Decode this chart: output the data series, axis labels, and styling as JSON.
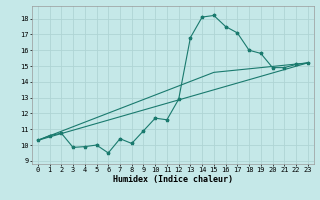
{
  "xlabel": "Humidex (Indice chaleur)",
  "bg_color": "#c5e8e8",
  "grid_color": "#afd4d4",
  "line_color": "#1a7a6e",
  "xlim": [
    -0.5,
    23.5
  ],
  "ylim": [
    8.8,
    18.8
  ],
  "xticks": [
    0,
    1,
    2,
    3,
    4,
    5,
    6,
    7,
    8,
    9,
    10,
    11,
    12,
    13,
    14,
    15,
    16,
    17,
    18,
    19,
    20,
    21,
    22,
    23
  ],
  "yticks": [
    9,
    10,
    11,
    12,
    13,
    14,
    15,
    16,
    17,
    18
  ],
  "zigzag_x": [
    0,
    1,
    2,
    3,
    4,
    5,
    6,
    7,
    8,
    9,
    10,
    11,
    12,
    13,
    14,
    15,
    16,
    17,
    18,
    19,
    20,
    21,
    22,
    23
  ],
  "zigzag_y": [
    10.3,
    10.6,
    10.75,
    9.85,
    9.9,
    10.0,
    9.5,
    10.4,
    10.1,
    10.9,
    11.7,
    11.6,
    12.9,
    16.8,
    18.1,
    18.2,
    17.5,
    17.1,
    16.0,
    15.8,
    14.9,
    14.9,
    15.1,
    15.2
  ],
  "line2_x": [
    0,
    23
  ],
  "line2_y": [
    10.3,
    15.2
  ],
  "line3_x": [
    0,
    15,
    23
  ],
  "line3_y": [
    10.3,
    14.6,
    15.2
  ],
  "xlabel_fontsize": 6,
  "tick_fontsize": 5,
  "marker_size": 2.5,
  "linewidth": 0.8
}
